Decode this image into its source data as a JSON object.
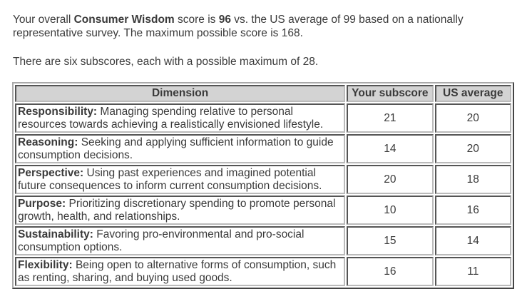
{
  "intro": {
    "prefix": "Your overall ",
    "score_name": "Consumer Wisdom",
    "mid": " score is ",
    "score": "96",
    "suffix": " vs. the US average of 99 based on a nationally representative survey.  The maximum possible score is 168."
  },
  "subscores_note": "There are six subscores, each with a possible maximum of 28.",
  "table": {
    "headers": [
      "Dimension",
      "Your subscore",
      "US average"
    ],
    "rows": [
      {
        "name": "Responsibility:",
        "desc": " Managing spending relative to personal resources towards achieving a realistically envisioned lifestyle.",
        "subscore": "21",
        "us": "20"
      },
      {
        "name": "Reasoning:",
        "desc": " Seeking and applying sufficient information to guide consumption decisions.",
        "subscore": "14",
        "us": "20"
      },
      {
        "name": "Perspective:",
        "desc": " Using past experiences and imagined potential future consequences to inform current consumption decisions.",
        "subscore": "20",
        "us": "18"
      },
      {
        "name": "Purpose:",
        "desc": " Prioritizing discretionary spending to promote personal growth, health, and relationships.",
        "subscore": "10",
        "us": "16"
      },
      {
        "name": "Sustainability:",
        "desc": " Favoring pro-environmental and pro-social consumption options.",
        "subscore": "15",
        "us": "14"
      },
      {
        "name": "Flexibility:",
        "desc": " Being open to alternative forms of consumption, such as renting, sharing, and buying used goods.",
        "subscore": "16",
        "us": "11"
      }
    ]
  }
}
